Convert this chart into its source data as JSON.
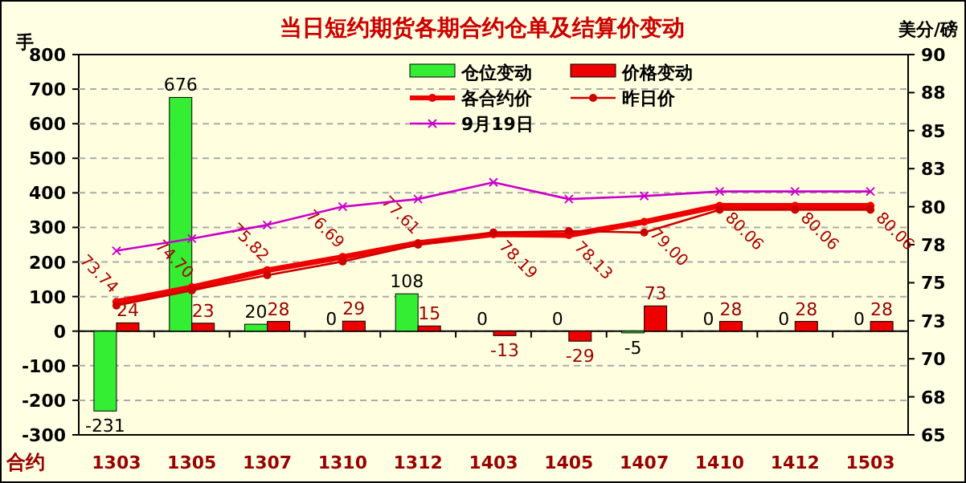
{
  "chart_data": {
    "type": "bar",
    "title": "当日短约期货各期合约仓单及结算价变动",
    "xlabel": "合约",
    "ylabel": "手",
    "y2label": "美分/磅",
    "categories": [
      "1303",
      "1305",
      "1307",
      "1310",
      "1312",
      "1403",
      "1405",
      "1407",
      "1410",
      "1412",
      "1503"
    ],
    "series": [
      {
        "name": "仓位变动",
        "color": "#33ee33",
        "values": [
          -231,
          676,
          20,
          0,
          108,
          0,
          0,
          -5,
          0,
          0,
          0
        ],
        "value_labels": [
          "-231",
          "676",
          "20",
          "0",
          "108",
          "0",
          "0",
          "-5",
          "0",
          "0",
          "0"
        ]
      },
      {
        "name": "价格变动",
        "color": "#ee0000",
        "values": [
          24,
          23,
          28,
          29,
          15,
          -13,
          -29,
          73,
          28,
          28,
          28
        ],
        "value_labels": [
          "24",
          "23",
          "28",
          "29",
          "15",
          "-13",
          "-29",
          "73",
          "28",
          "28",
          "28"
        ]
      },
      {
        "name": "各合约价",
        "type": "line",
        "axis": "y2",
        "color": "#ee0000",
        "marker": "circle",
        "values": [
          73.74,
          74.7,
          75.82,
          76.69,
          77.61,
          78.19,
          78.13,
          79.0,
          80.06,
          80.06,
          80.06
        ],
        "value_labels": [
          "73.74",
          "74.70",
          "75.82",
          "76.69",
          "77.61",
          "78.19",
          "78.13",
          "79.00",
          "80.06",
          "80.06",
          "80.06"
        ]
      },
      {
        "name": "昨日价",
        "type": "line",
        "axis": "y2",
        "color": "#cc0000",
        "marker": "circle",
        "values": [
          73.5,
          74.5,
          75.5,
          76.4,
          77.5,
          78.3,
          78.4,
          78.3,
          79.8,
          79.8,
          79.8
        ]
      },
      {
        "name": "9月19日",
        "type": "line",
        "axis": "y2",
        "color": "#cc00cc",
        "marker": "cross",
        "values": [
          77.1,
          77.9,
          78.8,
          80.0,
          80.5,
          81.6,
          80.5,
          80.7,
          81.0,
          81.0,
          81.0
        ]
      }
    ],
    "ylim": [
      -300,
      800
    ],
    "yticks": [
      -300,
      -200,
      -100,
      0,
      100,
      200,
      300,
      400,
      500,
      600,
      700,
      800
    ],
    "y2lim": [
      65,
      90
    ],
    "y2ticks": [
      65,
      {
        "value": 67.5,
        "label": "68"
      },
      70,
      {
        "value": 72.5,
        "label": "73"
      },
      75,
      {
        "value": 77.5,
        "label": "78"
      },
      80,
      {
        "value": 82.5,
        "label": "83"
      },
      85,
      {
        "value": 87.5,
        "label": "88"
      },
      90
    ],
    "grid": "y",
    "legend": "top"
  }
}
